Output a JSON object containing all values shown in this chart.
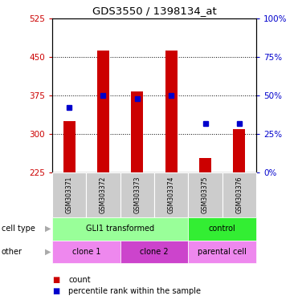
{
  "title": "GDS3550 / 1398134_at",
  "samples": [
    "GSM303371",
    "GSM303372",
    "GSM303373",
    "GSM303374",
    "GSM303375",
    "GSM303376"
  ],
  "count_values": [
    325,
    462,
    383,
    462,
    253,
    310
  ],
  "percentile_values": [
    42,
    50,
    48,
    50,
    32,
    32
  ],
  "y_min": 225,
  "y_max": 525,
  "y_ticks": [
    225,
    300,
    375,
    450,
    525
  ],
  "y_right_ticks": [
    0,
    25,
    50,
    75,
    100
  ],
  "bar_color": "#cc0000",
  "dot_color": "#0000cc",
  "cell_type_groups": [
    {
      "label": "GLI1 transformed",
      "start": 0,
      "end": 4,
      "color": "#99ff99"
    },
    {
      "label": "control",
      "start": 4,
      "end": 6,
      "color": "#33ee33"
    }
  ],
  "other_groups": [
    {
      "label": "clone 1",
      "start": 0,
      "end": 2,
      "color": "#ee88ee"
    },
    {
      "label": "clone 2",
      "start": 2,
      "end": 4,
      "color": "#cc44cc"
    },
    {
      "label": "parental cell",
      "start": 4,
      "end": 6,
      "color": "#ee88ee"
    }
  ],
  "cell_type_label": "cell type",
  "other_label": "other",
  "legend_count_label": "count",
  "legend_pct_label": "percentile rank within the sample",
  "left_axis_color": "#cc0000",
  "right_axis_color": "#0000cc",
  "bar_width": 0.35
}
